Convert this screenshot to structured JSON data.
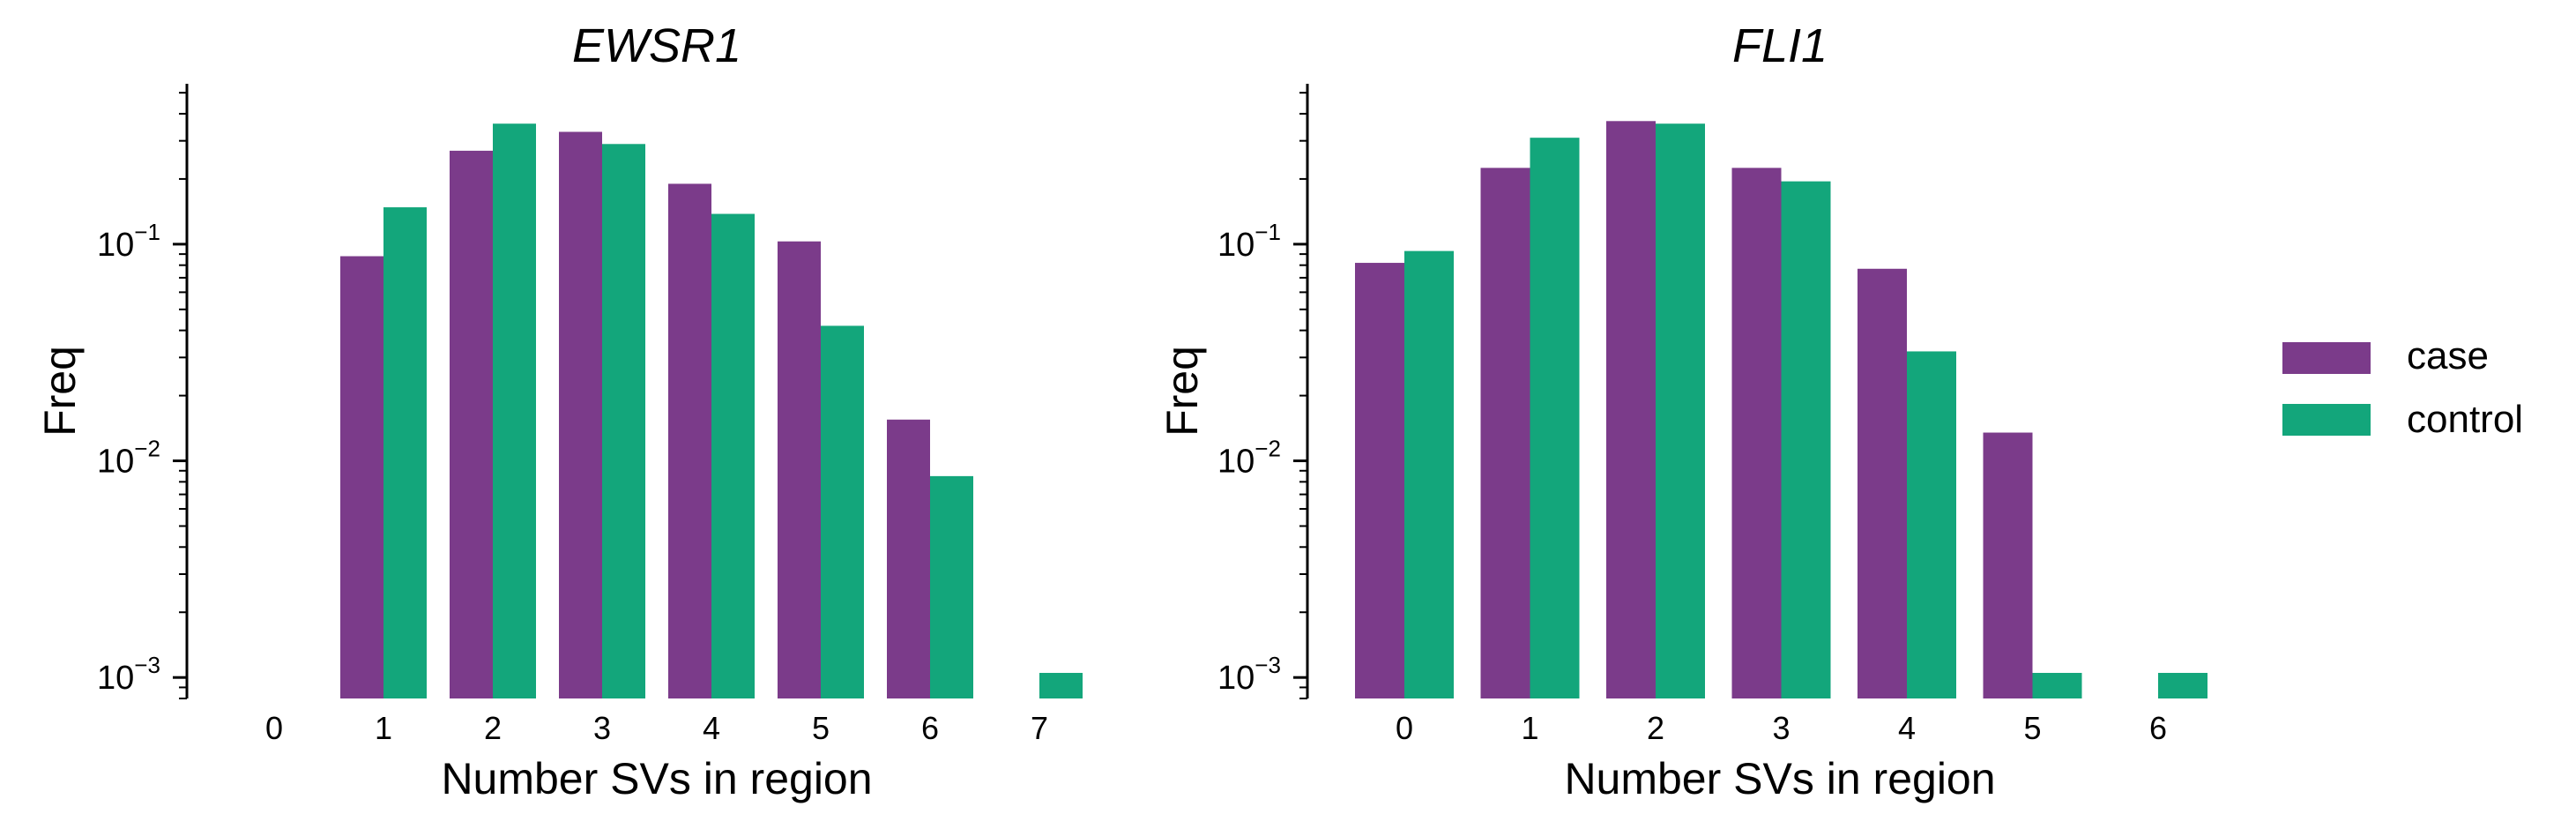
{
  "colors": {
    "case": "#7b3b8a",
    "control": "#13a67b"
  },
  "legend": {
    "placement": "right",
    "entries": [
      {
        "series": "case",
        "label": "case"
      },
      {
        "series": "control",
        "label": "control"
      }
    ]
  },
  "chart_data": [
    {
      "type": "bar",
      "title": "EWSR1",
      "xlabel": "Number SVs in region",
      "ylabel": "Freq",
      "yscale": "log",
      "ylim": [
        0.0008,
        0.55
      ],
      "grid": false,
      "categories": [
        "0",
        "1",
        "2",
        "3",
        "4",
        "5",
        "6",
        "7"
      ],
      "yticks": [
        {
          "base": "10",
          "exp": "−1",
          "value": 0.1
        },
        {
          "base": "10",
          "exp": "−2",
          "value": 0.01
        },
        {
          "base": "10",
          "exp": "−3",
          "value": 0.001
        }
      ],
      "series": [
        {
          "name": "case",
          "values": [
            null,
            0.088,
            0.27,
            0.33,
            0.19,
            0.103,
            0.0155,
            null
          ]
        },
        {
          "name": "control",
          "values": [
            null,
            0.148,
            0.36,
            0.29,
            0.138,
            0.042,
            0.0085,
            0.00105
          ]
        }
      ]
    },
    {
      "type": "bar",
      "title": "FLI1",
      "xlabel": "Number SVs in region",
      "ylabel": "Freq",
      "yscale": "log",
      "ylim": [
        0.0008,
        0.55
      ],
      "grid": false,
      "categories": [
        "0",
        "1",
        "2",
        "3",
        "4",
        "5",
        "6"
      ],
      "yticks": [
        {
          "base": "10",
          "exp": "−1",
          "value": 0.1
        },
        {
          "base": "10",
          "exp": "−2",
          "value": 0.01
        },
        {
          "base": "10",
          "exp": "−3",
          "value": 0.001
        }
      ],
      "series": [
        {
          "name": "case",
          "values": [
            0.082,
            0.225,
            0.37,
            0.225,
            0.077,
            0.0135,
            null
          ]
        },
        {
          "name": "control",
          "values": [
            0.093,
            0.31,
            0.36,
            0.195,
            0.032,
            0.00105,
            0.00105
          ]
        }
      ]
    }
  ]
}
